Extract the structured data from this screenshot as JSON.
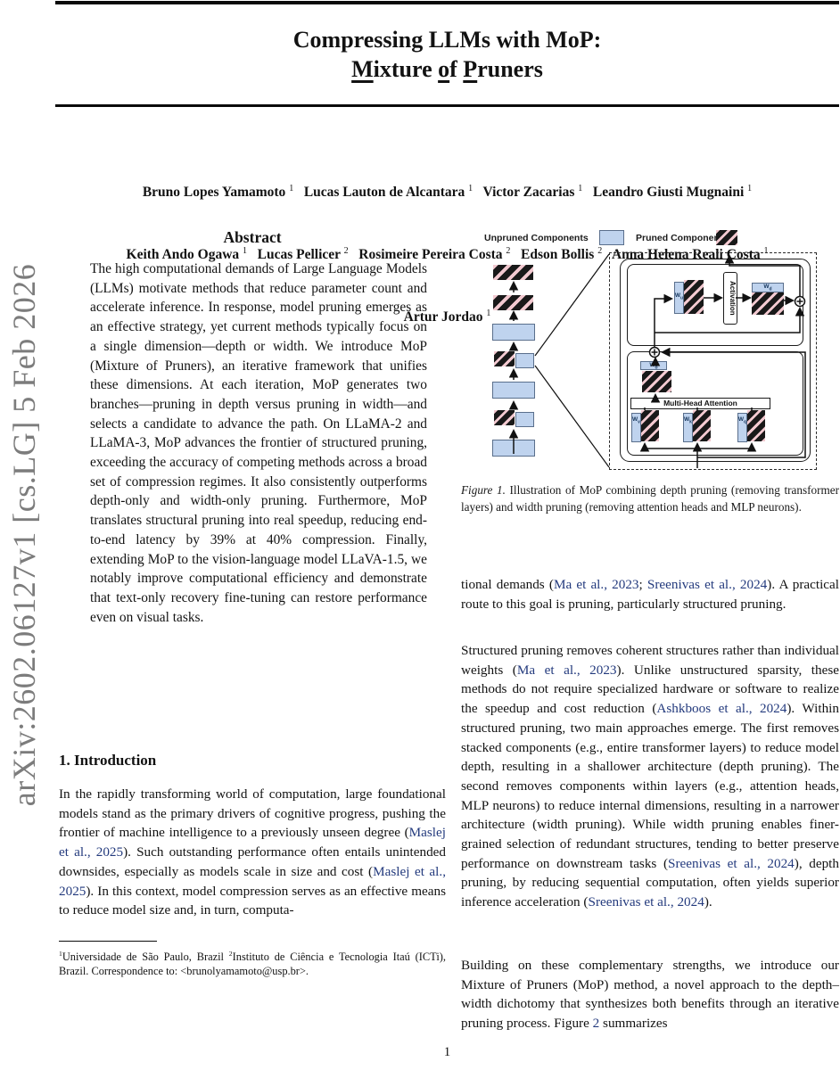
{
  "banner": {
    "text": "arXiv:2602.06127v1  [cs.LG]  5 Feb 2026"
  },
  "colors": {
    "citation_blue": "#233a7d",
    "banner_gray": "#7c7c7c",
    "unpruned_blue": "#bfd3ee",
    "pruned_pink": "#f2c9d0",
    "stripe_black": "#191919"
  },
  "header": {
    "title_line1": "Compressing LLMs with MoP:",
    "title_line2": [
      {
        "t": "M",
        "u": 1
      },
      {
        "t": "ixture "
      },
      {
        "t": "o",
        "u": 1
      },
      {
        "t": "f "
      },
      {
        "t": "P",
        "u": 1
      },
      {
        "t": "runers"
      }
    ],
    "author_lines": [
      [
        {
          "t": "Bruno Lopes Yamamoto "
        },
        {
          "t": "1",
          "sup": 1
        },
        {
          "t": "   Lucas Lauton de Alcantara "
        },
        {
          "t": "1",
          "sup": 1
        },
        {
          "t": "   Victor Zacarias "
        },
        {
          "t": "1",
          "sup": 1
        },
        {
          "t": "   Leandro Giusti Mugnaini "
        },
        {
          "t": "1",
          "sup": 1
        }
      ],
      [
        {
          "t": "Keith Ando Ogawa "
        },
        {
          "t": "1",
          "sup": 1
        },
        {
          "t": "   Lucas Pellicer "
        },
        {
          "t": "2",
          "sup": 1
        },
        {
          "t": "   Rosimeire Pereira Costa "
        },
        {
          "t": "2",
          "sup": 1
        },
        {
          "t": "   Edson Bollis "
        },
        {
          "t": "2",
          "sup": 1
        },
        {
          "t": "   Anna Helena Reali Costa "
        },
        {
          "t": "1",
          "sup": 1
        }
      ],
      [
        {
          "t": "Artur Jordao "
        },
        {
          "t": "1",
          "sup": 1
        }
      ]
    ]
  },
  "left_column": {
    "abstract_heading": "Abstract",
    "abstract_text": "The high computational demands of Large Language Models (LLMs) motivate methods that reduce parameter count and accelerate inference. In response, model pruning emerges as an effective strategy, yet current methods typically focus on a single dimension—depth or width. We introduce MoP (Mixture of Pruners), an iterative framework that unifies these dimensions. At each iteration, MoP generates two branches—pruning in depth versus pruning in width—and selects a candidate to advance the path. On LLaMA-2 and LLaMA-3, MoP advances the frontier of structured pruning, exceeding the accuracy of competing methods across a broad set of compression regimes. It also consistently outperforms depth-only and width-only pruning. Furthermore, MoP translates structural pruning into real speedup, reducing end-to-end latency by 39% at 40% compression. Finally, extending MoP to the vision-language model LLaVA-1.5, we notably improve computational efficiency and demonstrate that text-only recovery fine-tuning can restore performance even on visual tasks.",
    "intro_heading": "1. Introduction",
    "intro_paragraph": [
      {
        "t": "In the rapidly transforming world of computation, large foundational models stand as the primary drivers of cognitive progress, pushing the frontier of machine intelligence to a previously unseen degree ("
      },
      {
        "t": "Maslej et al., 2025",
        "c": 1
      },
      {
        "t": "). Such outstanding performance often entails unintended downsides, especially as models scale in size and cost ("
      },
      {
        "t": "Maslej et al., 2025",
        "c": 1
      },
      {
        "t": ").  In this context, model compression serves as an effective means to reduce model size and, in turn, computa-"
      }
    ],
    "footnote": [
      {
        "t": "1",
        "sup": 1
      },
      {
        "t": "Universidade de São Paulo, Brazil "
      },
      {
        "t": "2",
        "sup": 1
      },
      {
        "t": "Instituto de Ciência e Tecnologia Itaú (ICTi), Brazil. Correspondence to:  <brunolyamamoto@usp.br>."
      }
    ]
  },
  "figure": {
    "legend": {
      "unpruned": "Unpruned Components",
      "pruned": "Pruned Components"
    },
    "labels": {
      "activation": "Activation",
      "mha": "Multi-Head Attention",
      "wu": [
        {
          "t": "W"
        },
        {
          "t": "u",
          "sub": 1
        }
      ],
      "wd": [
        {
          "t": "W"
        },
        {
          "t": "d",
          "sub": 1
        }
      ],
      "wo": [
        {
          "t": "W"
        },
        {
          "t": "o",
          "sub": 1
        }
      ],
      "wv": [
        {
          "t": "W"
        },
        {
          "t": "v",
          "sub": 1
        }
      ],
      "wk": [
        {
          "t": "W"
        },
        {
          "t": "k",
          "sub": 1
        }
      ],
      "wq": [
        {
          "t": "W"
        },
        {
          "t": "q",
          "sub": 1
        }
      ]
    },
    "caption": [
      {
        "t": "Figure 1.",
        "i": 1
      },
      {
        "t": "  Illustration of MoP combining depth pruning (removing transformer layers) and width pruning (removing attention heads and MLP neurons)."
      }
    ]
  },
  "right_column": {
    "paragraph1": [
      {
        "t": "tional demands ("
      },
      {
        "t": "Ma et al., 2023",
        "c": 1
      },
      {
        "t": "; "
      },
      {
        "t": "Sreenivas et al., 2024",
        "c": 1
      },
      {
        "t": "). A practical route to this goal is pruning, particularly structured pruning."
      }
    ],
    "paragraph2": [
      {
        "t": "Structured pruning removes coherent structures rather than individual weights ("
      },
      {
        "t": "Ma et al., 2023",
        "c": 1
      },
      {
        "t": "). Unlike unstructured sparsity, these methods do not require specialized hardware or software to realize the speedup and cost reduction ("
      },
      {
        "t": "Ashkboos et al., 2024",
        "c": 1
      },
      {
        "t": ").  Within structured pruning, two main approaches emerge. The first removes stacked components (e.g., entire transformer layers) to reduce model depth, resulting in a shallower architecture (depth pruning).  The second removes components within layers (e.g., attention heads, MLP neurons) to reduce internal dimensions, resulting in a narrower architecture (width pruning). While width pruning enables finer-grained selection of redundant structures, tending to better preserve performance on downstream tasks ("
      },
      {
        "t": "Sreenivas et al., 2024",
        "c": 1
      },
      {
        "t": "), depth pruning, by reducing sequential computation, often yields superior inference acceleration ("
      },
      {
        "t": "Sreenivas et al., 2024",
        "c": 1
      },
      {
        "t": ")."
      }
    ],
    "paragraph3": [
      {
        "t": "Building on these complementary strengths, we introduce our Mixture of Pruners (MoP) method, a novel approach to the depth–width dichotomy that synthesizes both benefits through an iterative pruning process. Figure "
      },
      {
        "t": "2",
        "c": 1
      },
      {
        "t": " summarizes"
      }
    ]
  },
  "footer": {
    "page_number": "1"
  }
}
